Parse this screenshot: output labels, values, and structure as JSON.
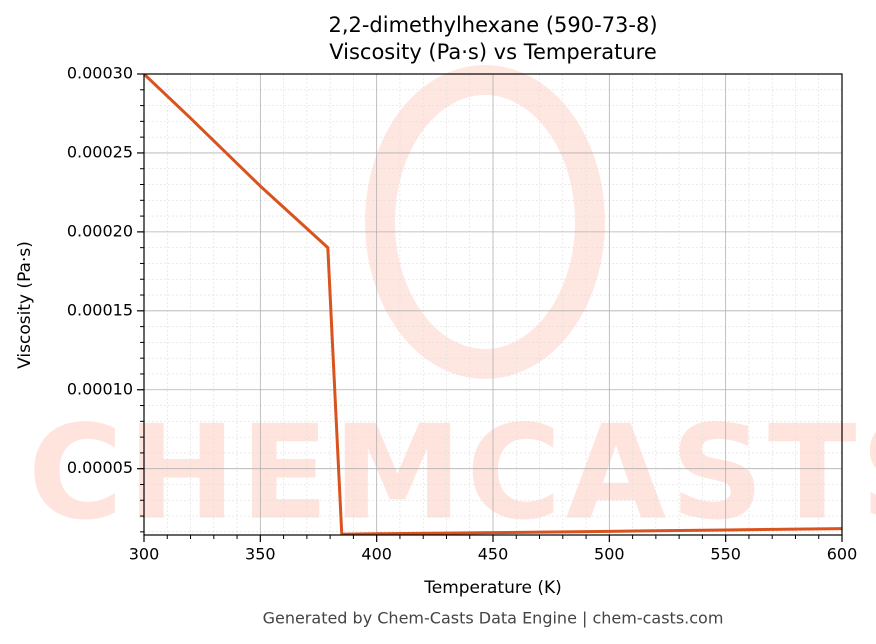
{
  "chart_data": {
    "type": "line",
    "title": "2,2-dimethylhexane (590-73-8)",
    "subtitle": "Viscosity (Pa·s) vs Temperature",
    "x_label": "Temperature (K)",
    "y_label": "Viscosity (Pa·s)",
    "footer": "Generated by Chem-Casts Data Engine | chem-casts.com",
    "watermark": "CHEMCASTS",
    "x": [
      300,
      320,
      350,
      379,
      385,
      400,
      450,
      500,
      550,
      600
    ],
    "series": [
      {
        "name": "Viscosity",
        "color": "#d9531e",
        "values": [
          0.0003,
          0.000272,
          0.000229,
          0.00019,
          8.5e-06,
          8.8e-06,
          9.5e-06,
          1.03e-05,
          1.12e-05,
          1.2e-05
        ]
      }
    ],
    "xlim": [
      300,
      600
    ],
    "ylim": [
      8e-06,
      0.0003
    ],
    "xticks": [
      300,
      350,
      400,
      450,
      500,
      550,
      600
    ],
    "yticks": [
      5e-05,
      {
        "value": 0.0001,
        "label": "0.00010"
      },
      0.00015,
      {
        "value": 0.0002,
        "label": "0.00020"
      },
      0.00025,
      {
        "value": 0.0003,
        "label": "0.00030"
      }
    ],
    "xminorticks": [
      310,
      320,
      330,
      340,
      360,
      370,
      380,
      390,
      410,
      420,
      430,
      440,
      460,
      470,
      480,
      490,
      510,
      520,
      530,
      540,
      560,
      570,
      580,
      590
    ],
    "yminorticks": [
      1e-05,
      2e-05,
      3e-05,
      4e-05,
      6e-05,
      7e-05,
      8e-05,
      9e-05,
      0.00011,
      0.00012,
      0.00013,
      0.00014,
      0.00016,
      0.00017,
      0.00018,
      0.00019,
      0.00021,
      0.00022,
      0.00023,
      0.00024,
      0.00026,
      0.00027,
      0.00028,
      0.00029
    ],
    "grid": true
  }
}
